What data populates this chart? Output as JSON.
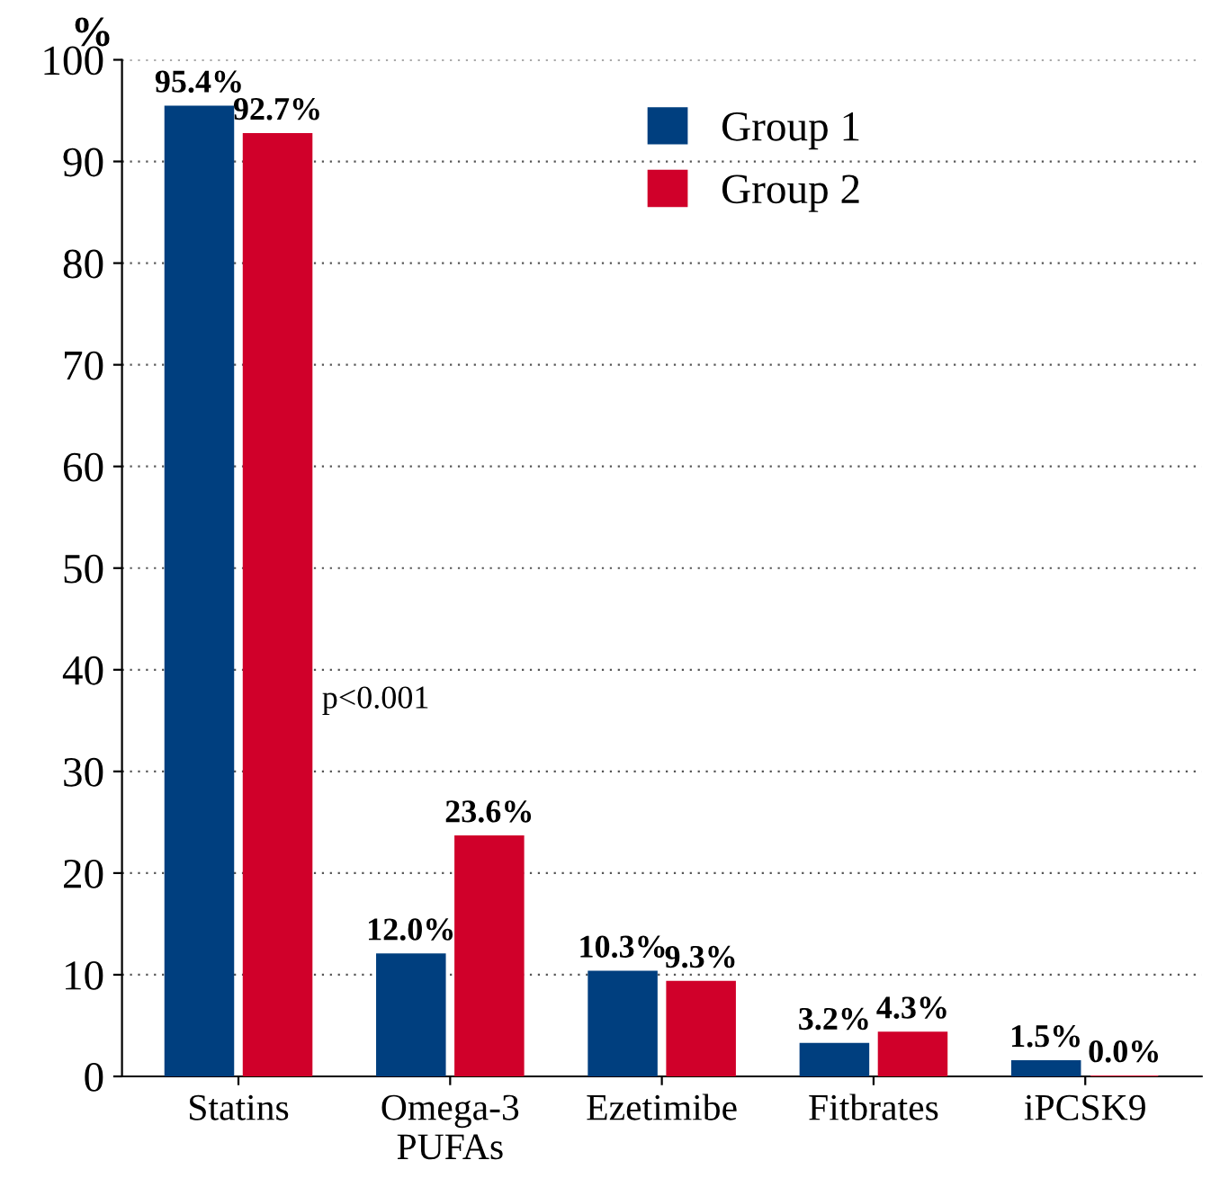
{
  "chart_data": {
    "type": "bar",
    "ylabel": "%",
    "categories": [
      "Statins",
      "Omega-3\nPUFAs",
      "Ezetimibe",
      "Fitbrates",
      "iPCSK9"
    ],
    "series": [
      {
        "name": "Group 1",
        "color": "#003f7f",
        "values": [
          95.4,
          12.0,
          10.3,
          3.2,
          1.5
        ],
        "value_labels": [
          "95.4%",
          "12.0%",
          "10.3%",
          "3.2%",
          "1.5%"
        ]
      },
      {
        "name": "Group 2",
        "color": "#d0002a",
        "values": [
          92.7,
          23.6,
          9.3,
          4.3,
          0.0
        ],
        "value_labels": [
          "92.7%",
          "23.6%",
          "9.3%",
          "4.3%",
          "0.0%"
        ]
      }
    ],
    "annotations": [
      "p<0.001"
    ],
    "ylim": [
      0,
      100
    ],
    "yticks": [
      0,
      10,
      20,
      30,
      40,
      50,
      60,
      70,
      80,
      90,
      100
    ],
    "grid": "y",
    "legend": "top right"
  }
}
